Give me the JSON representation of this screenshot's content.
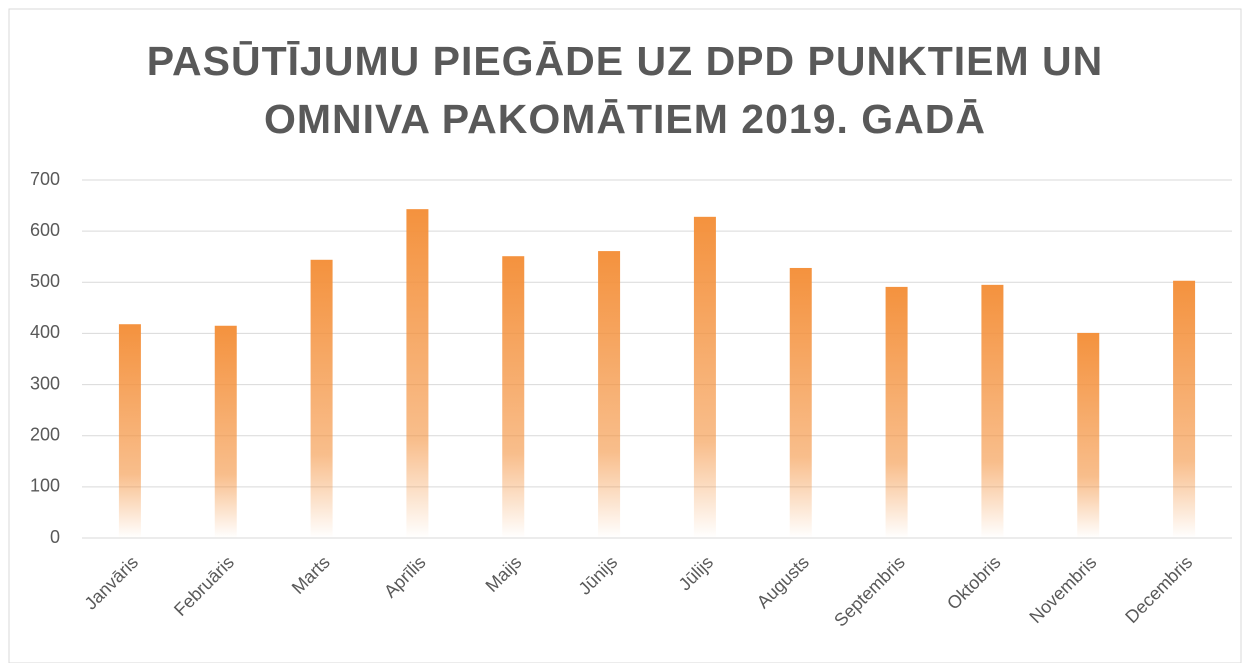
{
  "chart_data": {
    "type": "bar",
    "title": "PASŪTĪJUMU PIEGĀDE UZ DPD PUNKTIEM UN OMNIVA PAKOMĀTIEM 2019. GADĀ",
    "categories": [
      "Janvāris",
      "Februāris",
      "Marts",
      "Aprīlis",
      "Maijs",
      "Jūnijs",
      "Jūlijs",
      "Augusts",
      "Septembris",
      "Oktobris",
      "Novembris",
      "Decembris"
    ],
    "values": [
      418,
      415,
      544,
      643,
      551,
      561,
      628,
      528,
      491,
      495,
      401,
      503
    ],
    "color": "#f4923e",
    "ylim": [
      0,
      700
    ],
    "yticks": [
      0,
      100,
      200,
      300,
      400,
      500,
      600,
      700
    ],
    "grid": true
  }
}
